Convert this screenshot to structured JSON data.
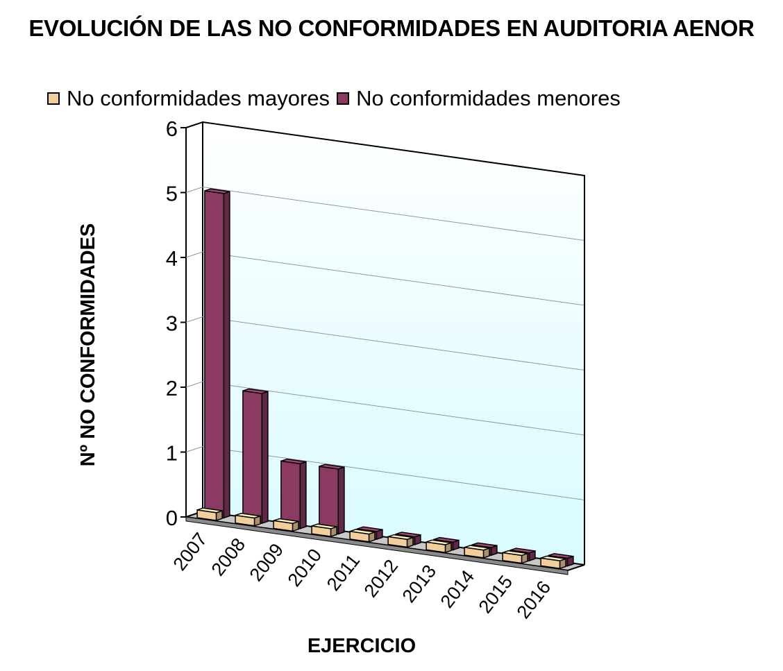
{
  "chart_data": {
    "type": "bar",
    "title": "EVOLUCIÓN DE LAS NO CONFORMIDADES EN AUDITORIA AENOR",
    "xlabel": "EJERCICIO",
    "ylabel": "Nº NO CONFORMIDADES",
    "categories": [
      "2007",
      "2008",
      "2009",
      "2010",
      "2011",
      "2012",
      "2013",
      "2014",
      "2015",
      "2016"
    ],
    "series": [
      {
        "name": "No conformidades mayores",
        "values": [
          0,
          0,
          0,
          0,
          0,
          0,
          0,
          0,
          0,
          0
        ],
        "color": "#F2CE9B"
      },
      {
        "name": "No conformidades menores",
        "values": [
          5,
          2,
          1,
          1,
          0,
          0,
          0,
          0,
          0,
          0
        ],
        "color": "#8B3A62"
      }
    ],
    "ylim": [
      0,
      6
    ],
    "yticks": [
      0,
      1,
      2,
      3,
      4,
      5,
      6
    ],
    "grid": true,
    "legend_position": "top-left",
    "style": "3d-column",
    "wall_color": "#DDFBFF"
  }
}
